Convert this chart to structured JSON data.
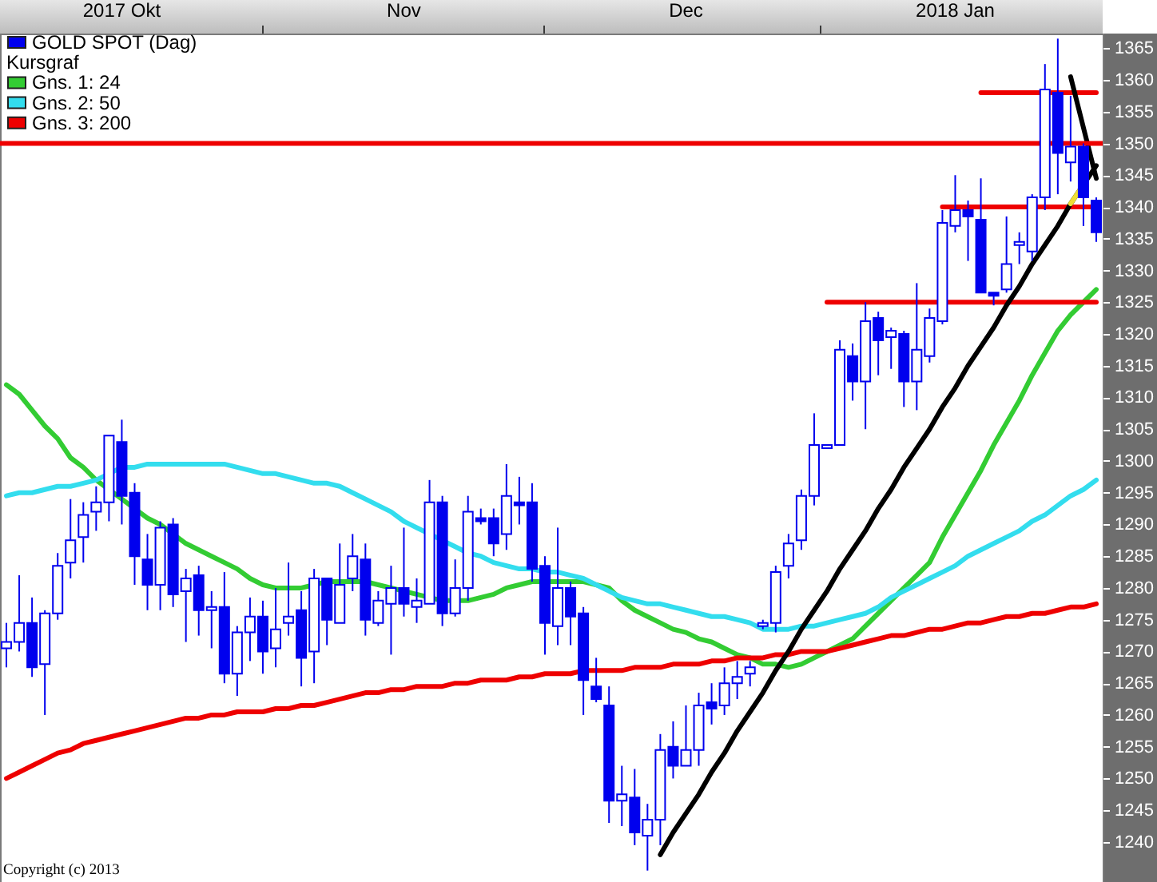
{
  "chart_data": {
    "type": "candlestick",
    "categories": [
      null,
      null,
      null,
      null,
      null,
      null,
      null,
      null,
      null,
      "2017 Okt",
      null,
      null,
      null,
      null,
      null,
      null,
      null,
      null,
      null,
      null,
      null,
      null,
      null,
      null,
      null,
      null,
      null,
      null,
      null,
      null,
      null,
      "Nov",
      null,
      null,
      null,
      null,
      null,
      null,
      null,
      null,
      null,
      null,
      null,
      null,
      null,
      null,
      null,
      null,
      null,
      null,
      null,
      null,
      null,
      "Dec",
      null,
      null,
      null,
      null,
      null,
      null,
      null,
      null,
      null,
      null,
      null,
      null,
      null,
      null,
      null,
      null,
      null,
      null,
      null,
      null,
      "2018 Jan",
      null,
      null,
      null,
      null,
      null,
      null,
      null,
      null,
      null,
      null,
      null
    ],
    "ylim": [
      1233.7,
      1367.3
    ],
    "yticks": [
      1240,
      1245,
      1250,
      1255,
      1260,
      1265,
      1270,
      1275,
      1280,
      1285,
      1290,
      1295,
      1300,
      1305,
      1310,
      1315,
      1320,
      1325,
      1330,
      1335,
      1340,
      1345,
      1350,
      1355,
      1360,
      1365
    ],
    "legend": "top left",
    "legend_title": "Kursgraf",
    "annotations": [
      "Copyright (c) 2013"
    ],
    "ref_lines": [
      {
        "axis": "y",
        "value": 1350,
        "color": "#ee0000"
      }
    ],
    "series": [
      {
        "name": "GOLD SPOT (Dag)",
        "type": "candlestick",
        "color": "#0000ee",
        "ohlc": [
          [
            1270.5,
            1274.5,
            1267.5,
            1271.5
          ],
          [
            1271.5,
            1282,
            1270,
            1274.5
          ],
          [
            1274.5,
            1278.5,
            1266,
            1267.5
          ],
          [
            1268,
            1276.5,
            1260,
            1276
          ],
          [
            1276,
            1285.5,
            1275,
            1283.5
          ],
          [
            1284,
            1294,
            1281.5,
            1287.5
          ],
          [
            1288,
            1293.5,
            1284,
            1291.5
          ],
          [
            1292,
            1296,
            1289,
            1293.5
          ],
          [
            1293.5,
            1304,
            1290.5,
            1304
          ],
          [
            1303,
            1306.5,
            1290,
            1294.5
          ],
          [
            1295,
            1296.5,
            1280.5,
            1285
          ],
          [
            1284.5,
            1288.5,
            1276.5,
            1280.5
          ],
          [
            1280.5,
            1290.5,
            1276.5,
            1289.5
          ],
          [
            1290,
            1291,
            1277,
            1279
          ],
          [
            1279.5,
            1283,
            1271.5,
            1281.5
          ],
          [
            1282,
            1283.5,
            1272.5,
            1276.5
          ],
          [
            1276.5,
            1279.5,
            1270.5,
            1277
          ],
          [
            1277,
            1282.5,
            1265,
            1266.5
          ],
          [
            1266.5,
            1274,
            1263,
            1273
          ],
          [
            1273,
            1278.5,
            1268.5,
            1275.5
          ],
          [
            1275.5,
            1278,
            1266.5,
            1270
          ],
          [
            1270.5,
            1280,
            1267.5,
            1273.5
          ],
          [
            1274.5,
            1284,
            1272.5,
            1275.5
          ],
          [
            1276.5,
            1279.5,
            1264.5,
            1269
          ],
          [
            1270,
            1283,
            1265,
            1281.5
          ],
          [
            1281.5,
            1281.5,
            1271,
            1275
          ],
          [
            1274.5,
            1287,
            1274.5,
            1280.5
          ],
          [
            1281.5,
            1288.5,
            1279.5,
            1285
          ],
          [
            1284.5,
            1287,
            1272.5,
            1275
          ],
          [
            1274.5,
            1279.5,
            1274,
            1278
          ],
          [
            1277.5,
            1283.5,
            1269.5,
            1280
          ],
          [
            1280,
            1289.5,
            1275.5,
            1277.5
          ],
          [
            1277,
            1281.5,
            1274.5,
            1278
          ],
          [
            1277.5,
            1297,
            1277.5,
            1293.5
          ],
          [
            1293.5,
            1294.5,
            1274,
            1276
          ],
          [
            1276,
            1284.5,
            1275.5,
            1280
          ],
          [
            1280,
            1294.5,
            1278,
            1292
          ],
          [
            1291,
            1292.5,
            1290,
            1290.5
          ],
          [
            1291,
            1292.5,
            1285,
            1287
          ],
          [
            1288.5,
            1299.5,
            1286,
            1294.5
          ],
          [
            1293.5,
            1297.5,
            1290,
            1293
          ],
          [
            1293.5,
            1296.5,
            1281,
            1283
          ],
          [
            1283.5,
            1285,
            1269.5,
            1274.5
          ],
          [
            1274,
            1289.5,
            1271,
            1280
          ],
          [
            1280,
            1281,
            1271,
            1275.5
          ],
          [
            1276,
            1277,
            1260,
            1265.5
          ],
          [
            1264.5,
            1269,
            1262,
            1262.5
          ],
          [
            1261.5,
            1264.5,
            1243,
            1246.5
          ],
          [
            1246.5,
            1252,
            1242.5,
            1247.5
          ],
          [
            1247,
            1251.5,
            1239.5,
            1241.5
          ],
          [
            1241,
            1246,
            1235.5,
            1243.5
          ],
          [
            1243.5,
            1257,
            1239.5,
            1254.5
          ],
          [
            1255,
            1259,
            1250,
            1252
          ],
          [
            1252,
            1261.5,
            1252,
            1254.5
          ],
          [
            1254.5,
            1263.5,
            1252,
            1261.5
          ],
          [
            1262,
            1265,
            1258.5,
            1261
          ],
          [
            1261.5,
            1267.5,
            1260,
            1265
          ],
          [
            1265,
            1268.5,
            1262.5,
            1266
          ],
          [
            1266.5,
            1268.5,
            1264.5,
            1267.5
          ],
          [
            1274,
            1275,
            1273.5,
            1274.5
          ],
          [
            1274.5,
            1283.5,
            1273,
            1282.5
          ],
          [
            1283.5,
            1288.5,
            1281.5,
            1287
          ],
          [
            1287.5,
            1295.5,
            1286,
            1294.5
          ],
          [
            1294.5,
            1307.5,
            1293,
            1302.5
          ],
          [
            1302,
            1302.5,
            1302,
            1302.5
          ],
          [
            1302.5,
            1319,
            1302.5,
            1317.5
          ],
          [
            1316.5,
            1318.5,
            1309.5,
            1312.5
          ],
          [
            1312.5,
            1325,
            1305,
            1322
          ],
          [
            1322.5,
            1323.5,
            1313.5,
            1319
          ],
          [
            1319.5,
            1321,
            1314.5,
            1320.5
          ],
          [
            1320,
            1320.5,
            1308.5,
            1312.5
          ],
          [
            1312.5,
            1328,
            1308,
            1317.5
          ],
          [
            1316.5,
            1324,
            1315.5,
            1322.5
          ],
          [
            1322,
            1339.5,
            1321.5,
            1337.5
          ],
          [
            1337,
            1345,
            1336,
            1339.5
          ],
          [
            1339.5,
            1341,
            1331.5,
            1338.5
          ],
          [
            1338,
            1344.5,
            1326.5,
            1326.5
          ],
          [
            1326.5,
            1326.5,
            1324.5,
            1326
          ],
          [
            1327,
            1338.5,
            1326.5,
            1331
          ],
          [
            1334,
            1336,
            1331,
            1334.5
          ],
          [
            1333,
            1342,
            1331.5,
            1341.5
          ],
          [
            1341.5,
            1362.5,
            1339.5,
            1358.5
          ],
          [
            1358,
            1366.5,
            1342,
            1348.5
          ],
          [
            1347,
            1357.5,
            1344,
            1349.5
          ],
          [
            1349.5,
            1350,
            1337,
            1341.5
          ],
          [
            1341,
            1341.5,
            1334.5,
            1336
          ]
        ]
      },
      {
        "name": "Gns. 1: 24",
        "type": "line",
        "color": "#33cc33",
        "values": [
          1312,
          1310.5,
          1308,
          1305.5,
          1303.5,
          1300.5,
          1299,
          1297,
          1295.5,
          1294,
          1292.5,
          1291,
          1290,
          1288.5,
          1287,
          1286,
          1285,
          1284,
          1283,
          1281.5,
          1280.5,
          1280,
          1280,
          1280,
          1280.5,
          1281,
          1281,
          1281,
          1281,
          1280.5,
          1280,
          1279.5,
          1279,
          1278.5,
          1278,
          1278,
          1278,
          1278.5,
          1279,
          1280,
          1280.5,
          1281,
          1281,
          1281,
          1281,
          1281,
          1280.5,
          1280,
          1278,
          1276.5,
          1275.5,
          1274.5,
          1273.5,
          1273,
          1272,
          1271.5,
          1270.5,
          1269.5,
          1269,
          1268,
          1268,
          1267.5,
          1268,
          1269,
          1270,
          1271,
          1272,
          1274,
          1276,
          1278,
          1280,
          1282,
          1284,
          1288,
          1291.5,
          1295,
          1298.5,
          1302.5,
          1306,
          1309.5,
          1313.5,
          1317,
          1320.5,
          1323,
          1325,
          1327
        ]
      },
      {
        "name": "Gns. 2: 50",
        "type": "line",
        "color": "#33ddee",
        "values": [
          1294.5,
          1295,
          1295,
          1295.5,
          1296,
          1296,
          1296.5,
          1297,
          1298,
          1299,
          1299,
          1299.5,
          1299.5,
          1299.5,
          1299.5,
          1299.5,
          1299.5,
          1299.5,
          1299,
          1298.5,
          1298,
          1298,
          1297.5,
          1297,
          1296.5,
          1296.5,
          1296,
          1295,
          1294,
          1293,
          1292,
          1290.5,
          1289.5,
          1288.5,
          1287.5,
          1286.5,
          1285.5,
          1285,
          1284,
          1283.5,
          1283,
          1283,
          1282.5,
          1282.5,
          1282,
          1281.5,
          1280.5,
          1279.5,
          1278.5,
          1278,
          1277.5,
          1277.5,
          1277,
          1276.5,
          1276,
          1275.5,
          1275.5,
          1275,
          1274.5,
          1273.5,
          1273.5,
          1273.5,
          1274,
          1274,
          1274.5,
          1275,
          1275.5,
          1276,
          1277,
          1278.5,
          1279.5,
          1280.5,
          1281.5,
          1282.5,
          1283.5,
          1285,
          1286,
          1287,
          1288,
          1289,
          1290.5,
          1291.5,
          1293,
          1294.5,
          1295.5,
          1297
        ]
      },
      {
        "name": "Gns. 3: 200",
        "type": "line",
        "color": "#ee0000",
        "values": [
          1250,
          1251,
          1252,
          1253,
          1254,
          1254.5,
          1255.5,
          1256,
          1256.5,
          1257,
          1257.5,
          1258,
          1258.5,
          1259,
          1259.5,
          1259.5,
          1260,
          1260,
          1260.5,
          1260.5,
          1260.5,
          1261,
          1261,
          1261.5,
          1261.5,
          1262,
          1262.5,
          1263,
          1263.5,
          1263.5,
          1264,
          1264,
          1264.5,
          1264.5,
          1264.5,
          1265,
          1265,
          1265.5,
          1265.5,
          1265.5,
          1266,
          1266,
          1266.5,
          1266.5,
          1266.5,
          1267,
          1267,
          1267,
          1267,
          1267.5,
          1267.5,
          1267.5,
          1268,
          1268,
          1268,
          1268.5,
          1268.5,
          1269,
          1269,
          1269,
          1269.5,
          1269.5,
          1270,
          1270,
          1270,
          1270.5,
          1271,
          1271.5,
          1272,
          1272.5,
          1272.5,
          1273,
          1273.5,
          1273.5,
          1274,
          1274.5,
          1274.5,
          1275,
          1275.5,
          1275.5,
          1276,
          1276,
          1276.5,
          1277,
          1277,
          1277.5
        ]
      },
      {
        "type": "line",
        "color": "#ee0000",
        "values": [
          null,
          null,
          null,
          null,
          null,
          null,
          null,
          null,
          null,
          null,
          null,
          null,
          null,
          null,
          null,
          null,
          null,
          null,
          null,
          null,
          null,
          null,
          null,
          null,
          null,
          null,
          null,
          null,
          null,
          null,
          null,
          null,
          null,
          null,
          null,
          null,
          null,
          null,
          null,
          null,
          null,
          null,
          null,
          null,
          null,
          null,
          null,
          null,
          null,
          null,
          null,
          null,
          null,
          null,
          null,
          null,
          null,
          null,
          null,
          null,
          null,
          null,
          null,
          null,
          1325,
          1325,
          1325,
          1325,
          1325,
          1325,
          1325,
          1325,
          1325,
          1325,
          1325,
          1325,
          1325,
          1325,
          1325,
          1325,
          1325,
          1325,
          1325,
          1325,
          1325,
          1325
        ]
      },
      {
        "type": "line",
        "color": "#ee0000",
        "values": [
          null,
          null,
          null,
          null,
          null,
          null,
          null,
          null,
          null,
          null,
          null,
          null,
          null,
          null,
          null,
          null,
          null,
          null,
          null,
          null,
          null,
          null,
          null,
          null,
          null,
          null,
          null,
          null,
          null,
          null,
          null,
          null,
          null,
          null,
          null,
          null,
          null,
          null,
          null,
          null,
          null,
          null,
          null,
          null,
          null,
          null,
          null,
          null,
          null,
          null,
          null,
          null,
          null,
          null,
          null,
          null,
          null,
          null,
          null,
          null,
          null,
          null,
          null,
          null,
          null,
          null,
          null,
          null,
          null,
          null,
          null,
          null,
          null,
          1340,
          1340,
          1340,
          1340,
          1340,
          1340,
          1340,
          1340,
          1340,
          1340,
          1340,
          1340,
          1340
        ]
      },
      {
        "type": "line",
        "color": "#ee0000",
        "values": [
          null,
          null,
          null,
          null,
          null,
          null,
          null,
          null,
          null,
          null,
          null,
          null,
          null,
          null,
          null,
          null,
          null,
          null,
          null,
          null,
          null,
          null,
          null,
          null,
          null,
          null,
          null,
          null,
          null,
          null,
          null,
          null,
          null,
          null,
          null,
          null,
          null,
          null,
          null,
          null,
          null,
          null,
          null,
          null,
          null,
          null,
          null,
          null,
          null,
          null,
          null,
          null,
          null,
          null,
          null,
          null,
          null,
          null,
          null,
          null,
          null,
          null,
          null,
          null,
          null,
          null,
          null,
          null,
          null,
          null,
          null,
          null,
          null,
          null,
          null,
          null,
          1358,
          1358,
          1358,
          1358,
          1358,
          1358,
          1358,
          1358,
          1358,
          1358
        ]
      },
      {
        "type": "line",
        "color": "#000000",
        "values": [
          null,
          null,
          null,
          null,
          null,
          null,
          null,
          null,
          null,
          null,
          null,
          null,
          null,
          null,
          null,
          null,
          null,
          null,
          null,
          null,
          null,
          null,
          null,
          null,
          null,
          null,
          null,
          null,
          null,
          null,
          null,
          null,
          null,
          null,
          null,
          null,
          null,
          null,
          null,
          null,
          null,
          null,
          null,
          null,
          null,
          null,
          null,
          null,
          null,
          null,
          null,
          1238,
          1241.5,
          1244.5,
          1247.5,
          1251,
          1254,
          1257.5,
          1260.5,
          1263.5,
          1267,
          1270,
          1273.5,
          1276.5,
          1279.5,
          1283,
          1286,
          1289,
          1292.5,
          1295.5,
          1299,
          1302,
          1305,
          1308.5,
          1311.5,
          1315,
          1318,
          1321,
          1324.5,
          1327.5,
          1331,
          1334,
          1337,
          1340.5,
          1343.5,
          1346.5
        ]
      },
      {
        "type": "line",
        "color": "#000000",
        "values": [
          null,
          null,
          null,
          null,
          null,
          null,
          null,
          null,
          null,
          null,
          null,
          null,
          null,
          null,
          null,
          null,
          null,
          null,
          null,
          null,
          null,
          null,
          null,
          null,
          null,
          null,
          null,
          null,
          null,
          null,
          null,
          null,
          null,
          null,
          null,
          null,
          null,
          null,
          null,
          null,
          null,
          null,
          null,
          null,
          null,
          null,
          null,
          null,
          null,
          null,
          null,
          null,
          null,
          null,
          null,
          null,
          null,
          null,
          null,
          null,
          null,
          null,
          null,
          null,
          null,
          null,
          null,
          null,
          null,
          null,
          null,
          null,
          null,
          null,
          null,
          null,
          null,
          null,
          null,
          null,
          null,
          null,
          null,
          1360.5,
          1352.5,
          1344.5
        ]
      },
      {
        "type": "line",
        "color": "#eedd33",
        "values": [
          null,
          null,
          null,
          null,
          null,
          null,
          null,
          null,
          null,
          null,
          null,
          null,
          null,
          null,
          null,
          null,
          null,
          null,
          null,
          null,
          null,
          null,
          null,
          null,
          null,
          null,
          null,
          null,
          null,
          null,
          null,
          null,
          null,
          null,
          null,
          null,
          null,
          null,
          null,
          null,
          null,
          null,
          null,
          null,
          null,
          null,
          null,
          null,
          null,
          null,
          null,
          null,
          null,
          null,
          null,
          null,
          null,
          null,
          null,
          null,
          null,
          null,
          null,
          null,
          null,
          null,
          null,
          null,
          null,
          null,
          null,
          null,
          null,
          null,
          null,
          null,
          null,
          null,
          null,
          null,
          null,
          null,
          null,
          1340.5,
          1343.5,
          null
        ]
      }
    ]
  }
}
